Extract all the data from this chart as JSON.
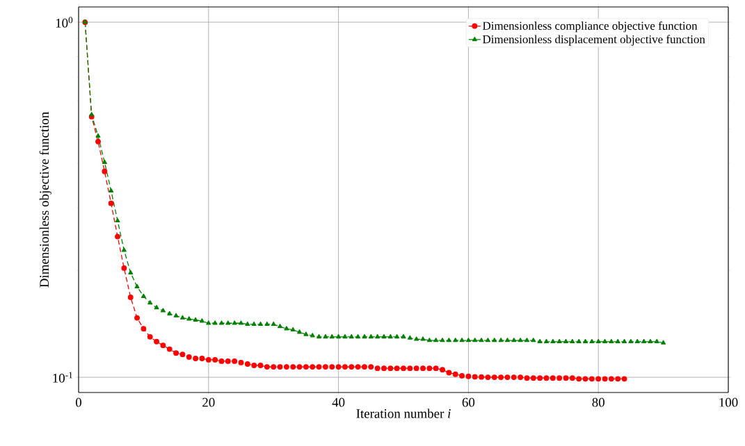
{
  "chart_data": {
    "type": "line",
    "xlabel": "Iteration number *i*",
    "ylabel": "Dimensionless objective function",
    "log": "y",
    "grid": true,
    "legend": "top right",
    "line_style": "dashed",
    "xlim": [
      0,
      100
    ],
    "xticks": [
      0,
      20,
      40,
      60,
      80,
      100
    ],
    "ylim": [
      0.0906,
      1.104
    ],
    "yticks": [
      {
        "value": 0.1,
        "label": "10$^{-1}$"
      },
      {
        "value": 1,
        "label": "10$^{0}$"
      }
    ],
    "series": [
      {
        "name": "Dimensionless compliance objective function",
        "color": "#ff0000",
        "marker": "circle",
        "x": [
          1,
          2,
          3,
          4,
          5,
          6,
          7,
          8,
          9,
          10,
          11,
          12,
          13,
          14,
          15,
          16,
          17,
          18,
          19,
          20,
          21,
          22,
          23,
          24,
          25,
          26,
          27,
          28,
          29,
          30,
          31,
          32,
          33,
          34,
          35,
          36,
          37,
          38,
          39,
          40,
          41,
          42,
          43,
          44,
          45,
          46,
          47,
          48,
          49,
          50,
          51,
          52,
          53,
          54,
          55,
          56,
          57,
          58,
          59,
          60,
          61,
          62,
          63,
          64,
          65,
          66,
          67,
          68,
          69,
          70,
          71,
          72,
          73,
          74,
          75,
          76,
          77,
          78,
          79,
          80,
          81,
          82,
          83,
          84
        ],
        "values": [
          1.0,
          0.542,
          0.461,
          0.38,
          0.309,
          0.249,
          0.203,
          0.168,
          0.147,
          0.137,
          0.13,
          0.126,
          0.123,
          0.12,
          0.117,
          0.116,
          0.114,
          0.113,
          0.113,
          0.112,
          0.112,
          0.111,
          0.111,
          0.111,
          0.11,
          0.109,
          0.108,
          0.108,
          0.107,
          0.107,
          0.107,
          0.107,
          0.107,
          0.107,
          0.107,
          0.107,
          0.107,
          0.107,
          0.107,
          0.107,
          0.107,
          0.107,
          0.107,
          0.107,
          0.107,
          0.106,
          0.106,
          0.106,
          0.106,
          0.106,
          0.106,
          0.106,
          0.106,
          0.106,
          0.106,
          0.105,
          0.103,
          0.102,
          0.101,
          0.1006,
          0.1003,
          0.1002,
          0.1,
          0.1,
          0.1,
          0.1,
          0.1,
          0.1,
          0.0995,
          0.0995,
          0.0995,
          0.0995,
          0.0995,
          0.0995,
          0.0995,
          0.0995,
          0.099,
          0.099,
          0.099,
          0.099,
          0.099,
          0.099,
          0.099,
          0.099
        ]
      },
      {
        "name": "Dimensionless displacement objective function",
        "color": "#008000",
        "marker": "triangle",
        "x": [
          1,
          2,
          3,
          4,
          5,
          6,
          7,
          8,
          9,
          10,
          11,
          12,
          13,
          14,
          15,
          16,
          17,
          18,
          19,
          20,
          21,
          22,
          23,
          24,
          25,
          26,
          27,
          28,
          29,
          30,
          31,
          32,
          33,
          34,
          35,
          36,
          37,
          38,
          39,
          40,
          41,
          42,
          43,
          44,
          45,
          46,
          47,
          48,
          49,
          50,
          51,
          52,
          53,
          54,
          55,
          56,
          57,
          58,
          59,
          60,
          61,
          62,
          63,
          64,
          65,
          66,
          67,
          68,
          69,
          70,
          71,
          72,
          73,
          74,
          75,
          76,
          77,
          78,
          79,
          80,
          81,
          82,
          83,
          84,
          85,
          86,
          87,
          88,
          89,
          90
        ],
        "values": [
          1.0,
          0.549,
          0.478,
          0.403,
          0.335,
          0.276,
          0.228,
          0.197,
          0.18,
          0.169,
          0.162,
          0.157,
          0.154,
          0.151,
          0.149,
          0.147,
          0.146,
          0.145,
          0.144,
          0.142,
          0.142,
          0.142,
          0.142,
          0.142,
          0.142,
          0.141,
          0.141,
          0.141,
          0.141,
          0.141,
          0.139,
          0.137,
          0.136,
          0.134,
          0.132,
          0.131,
          0.13,
          0.13,
          0.13,
          0.13,
          0.13,
          0.13,
          0.13,
          0.13,
          0.13,
          0.13,
          0.13,
          0.13,
          0.13,
          0.13,
          0.129,
          0.128,
          0.128,
          0.127,
          0.127,
          0.127,
          0.127,
          0.127,
          0.127,
          0.127,
          0.127,
          0.127,
          0.127,
          0.127,
          0.127,
          0.127,
          0.127,
          0.127,
          0.127,
          0.127,
          0.126,
          0.126,
          0.126,
          0.126,
          0.126,
          0.126,
          0.126,
          0.126,
          0.126,
          0.126,
          0.126,
          0.126,
          0.126,
          0.126,
          0.126,
          0.126,
          0.126,
          0.126,
          0.126,
          0.125
        ]
      }
    ]
  }
}
